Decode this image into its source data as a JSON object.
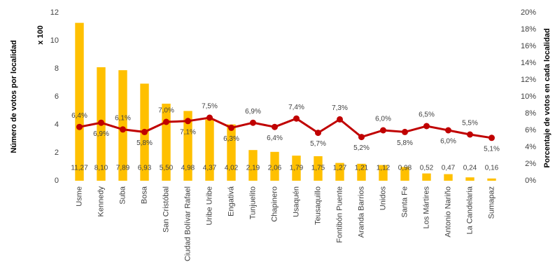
{
  "chart_data": {
    "type": "bar_line",
    "y_label": "Número de votos por localidad",
    "y_multiplier": "x 100",
    "y2_label": "Porcentaje de votos en cada localidad",
    "categories": [
      "Usme",
      "Kennedy",
      "Suba",
      "Bosa",
      "San Cristóbal",
      "Ciudad Bolívar Rafael",
      "Uribe Uribe",
      "Engativá",
      "Tunjuelito",
      "Chapinero",
      "Usaquén",
      "Teusaquillo",
      "Fontibón Puente",
      "Aranda Barrios",
      "Unidos",
      "Santa Fe",
      "Los Mártires",
      "Antonio Nariño",
      "La Candelaria",
      "Sumapaz"
    ],
    "series": [
      {
        "type": "bar",
        "color": "#ffc000",
        "values": [
          11.27,
          8.1,
          7.89,
          6.93,
          5.5,
          4.98,
          4.37,
          4.02,
          2.19,
          2.06,
          1.79,
          1.75,
          1.27,
          1.21,
          1.12,
          0.98,
          0.52,
          0.47,
          0.24,
          0.16
        ],
        "value_labels": [
          "11,27",
          "8,10",
          "7,89",
          "6,93",
          "5,50",
          "4,98",
          "4,37",
          "4,02",
          "2,19",
          "2,06",
          "1,79",
          "1,75",
          "1,27",
          "1,21",
          "1,12",
          "0,98",
          "0,52",
          "0,47",
          "0,24",
          "0,16"
        ]
      },
      {
        "type": "line",
        "axis": "y2",
        "color": "#c00000",
        "values": [
          6.4,
          6.9,
          6.1,
          5.8,
          7.0,
          7.1,
          7.5,
          6.3,
          6.9,
          6.4,
          7.4,
          5.7,
          7.3,
          5.2,
          6.0,
          5.8,
          6.5,
          6.0,
          5.5,
          5.1
        ],
        "value_labels": [
          "6,4%",
          "6,9%",
          "6,1%",
          "5,8%",
          "7,0%",
          "7,1%",
          "7,5%",
          "6,3%",
          "6,9%",
          "6,4%",
          "7,4%",
          "5,7%",
          "7,3%",
          "5,2%",
          "6,0%",
          "5,8%",
          "6,5%",
          "6,0%",
          "5,5%",
          "5,1%"
        ]
      }
    ],
    "ylim": [
      0,
      12
    ],
    "yticks": [
      0,
      2,
      4,
      6,
      8,
      10,
      12
    ],
    "y2lim": [
      0,
      20
    ],
    "y2ticks": [
      {
        "value": 0,
        "label": "0%"
      },
      {
        "value": 2,
        "label": "2%"
      },
      {
        "value": 4,
        "label": "4%"
      },
      {
        "value": 6,
        "label": "6%"
      },
      {
        "value": 8,
        "label": "8%"
      },
      {
        "value": 10,
        "label": "10%"
      },
      {
        "value": 12,
        "label": "12%"
      },
      {
        "value": 14,
        "label": "14%"
      },
      {
        "value": 16,
        "label": "16%"
      },
      {
        "value": 18,
        "label": "18%"
      },
      {
        "value": 20,
        "label": "20%"
      }
    ]
  }
}
